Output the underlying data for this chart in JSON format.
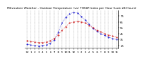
{
  "title": "Milwaukee Weather - Outdoor Temperature (vs) THSW Index per Hour (Last 24 Hours)",
  "x": [
    0,
    1,
    2,
    3,
    4,
    5,
    6,
    7,
    8,
    9,
    10,
    11,
    12,
    13,
    14,
    15,
    16,
    17,
    18,
    19,
    20,
    21,
    22,
    23
  ],
  "temp": [
    33,
    32,
    31,
    30,
    30,
    31,
    33,
    37,
    43,
    51,
    57,
    63,
    65,
    66,
    65,
    63,
    59,
    55,
    51,
    48,
    45,
    43,
    41,
    39
  ],
  "thsw": [
    27,
    26,
    25,
    24,
    25,
    26,
    29,
    34,
    47,
    63,
    73,
    79,
    81,
    80,
    74,
    68,
    61,
    54,
    49,
    45,
    42,
    39,
    37,
    35
  ],
  "temp_color": "#cc0000",
  "thsw_color": "#0000cc",
  "bg_color": "#ffffff",
  "grid_color": "#888888",
  "ylim": [
    20,
    85
  ],
  "yticks": [
    25,
    35,
    45,
    55,
    65,
    75
  ],
  "xlabel_vals": [
    "12",
    "1",
    "2",
    "3",
    "4",
    "5",
    "6",
    "7",
    "8",
    "9",
    "10",
    "11",
    "12",
    "1",
    "2",
    "3",
    "4",
    "5",
    "6",
    "7",
    "8",
    "9",
    "10",
    "11"
  ],
  "title_fontsize": 3.2,
  "tick_fontsize": 2.8
}
